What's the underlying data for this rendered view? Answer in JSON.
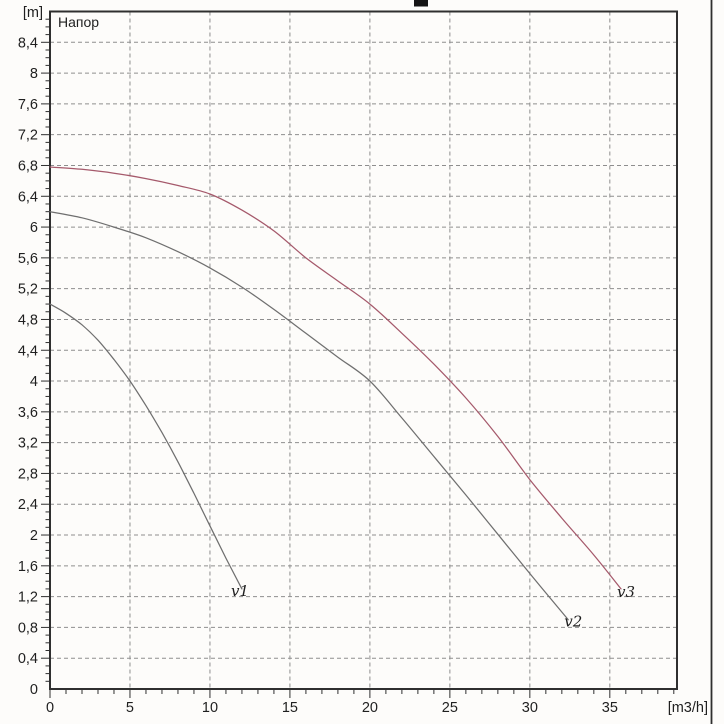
{
  "page": {
    "background": "#fdfcfa"
  },
  "chart_data": {
    "type": "line",
    "title": "Напор",
    "y_unit_label": "[m]",
    "x_unit_label": "[m3/h]",
    "x_axis": {
      "min": 0,
      "max": 39.2,
      "major_tick_step": 5,
      "minor_tick_step": 1,
      "tick_labels": [
        "0",
        "5",
        "10",
        "15",
        "20",
        "25",
        "30",
        "35"
      ]
    },
    "y_axis": {
      "min": 0,
      "max": 8.8,
      "major_tick_step": 0.4,
      "minor_tick_step": 0.1,
      "tick_labels": [
        "0",
        "0,4",
        "0,8",
        "1,2",
        "1,6",
        "2",
        "2,4",
        "2,8",
        "3,2",
        "3,6",
        "4",
        "4,4",
        "4,8",
        "5,2",
        "5,6",
        "6",
        "6,4",
        "6,8",
        "7,2",
        "7,6",
        "8",
        "8,4"
      ]
    },
    "grid": {
      "show": true,
      "style": "dashed",
      "color": "#8e8e8e"
    },
    "axis_color": "#2f2f2f",
    "series": [
      {
        "name": "v1",
        "color": "#6f6f6f",
        "label_color": "#7a7a7a",
        "label_offset": [
          -11,
          7
        ],
        "points": [
          [
            0,
            5.0
          ],
          [
            1,
            4.88
          ],
          [
            2,
            4.73
          ],
          [
            3,
            4.53
          ],
          [
            4,
            4.28
          ],
          [
            5,
            4.0
          ],
          [
            6,
            3.68
          ],
          [
            7,
            3.33
          ],
          [
            8,
            2.95
          ],
          [
            9,
            2.54
          ],
          [
            10,
            2.12
          ],
          [
            11,
            1.7
          ],
          [
            12,
            1.3
          ]
        ]
      },
      {
        "name": "v2",
        "color": "#6f6f6f",
        "label_color": "#7a7a7a",
        "label_offset": [
          -4,
          7
        ],
        "points": [
          [
            0,
            6.2
          ],
          [
            2,
            6.12
          ],
          [
            4,
            6.0
          ],
          [
            6,
            5.86
          ],
          [
            8,
            5.68
          ],
          [
            10,
            5.47
          ],
          [
            12,
            5.22
          ],
          [
            14,
            4.93
          ],
          [
            16,
            4.62
          ],
          [
            18,
            4.31
          ],
          [
            20,
            4.0
          ],
          [
            22,
            3.52
          ],
          [
            24,
            3.02
          ],
          [
            26,
            2.52
          ],
          [
            28,
            2.01
          ],
          [
            30,
            1.5
          ],
          [
            32,
            1.0
          ],
          [
            32.4,
            0.9
          ]
        ]
      },
      {
        "name": "v3",
        "color": "#a5596b",
        "label_color": "#a5596b",
        "label_offset": [
          -4,
          8
        ],
        "points": [
          [
            0,
            6.78
          ],
          [
            2,
            6.75
          ],
          [
            4,
            6.7
          ],
          [
            6,
            6.63
          ],
          [
            8,
            6.54
          ],
          [
            10,
            6.43
          ],
          [
            12,
            6.22
          ],
          [
            14,
            5.95
          ],
          [
            16,
            5.6
          ],
          [
            18,
            5.3
          ],
          [
            20,
            5.0
          ],
          [
            22,
            4.62
          ],
          [
            24,
            4.22
          ],
          [
            26,
            3.78
          ],
          [
            28,
            3.28
          ],
          [
            30,
            2.72
          ],
          [
            32,
            2.22
          ],
          [
            34,
            1.74
          ],
          [
            35.7,
            1.3
          ]
        ]
      }
    ],
    "annotations": {
      "cropped_title_fragment": true,
      "window_edge_line_color": "#2f2f2f"
    }
  }
}
